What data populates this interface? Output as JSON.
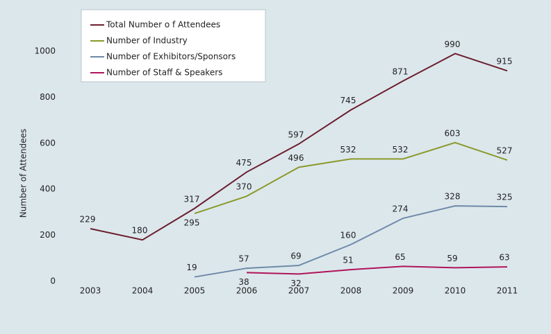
{
  "chart_data": {
    "type": "line",
    "y_label": "Number of Attendees",
    "categories": [
      "2003",
      "2004",
      "2005",
      "2006",
      "2007",
      "2008",
      "2009",
      "2010",
      "2011"
    ],
    "series": [
      {
        "name": "Total Number o f Attendees",
        "color": "#6b1e2e",
        "values": [
          229,
          180,
          317,
          475,
          597,
          745,
          871,
          990,
          915
        ]
      },
      {
        "name": "Number of Industry",
        "color": "#8a9a2a",
        "values": [
          null,
          null,
          295,
          370,
          496,
          532,
          532,
          603,
          527
        ]
      },
      {
        "name": "Number of Exhibitors/Sponsors",
        "color": "#6e8aa8",
        "values": [
          null,
          null,
          19,
          57,
          69,
          160,
          274,
          328,
          325
        ]
      },
      {
        "name": "Number of Staff & Speakers",
        "color": "#b0145a",
        "values": [
          null,
          null,
          null,
          38,
          32,
          51,
          65,
          59,
          63
        ]
      }
    ],
    "ylim": [
      0,
      1000
    ],
    "yticks": [
      0,
      200,
      400,
      600,
      800,
      1000
    ],
    "legend": "top-left"
  }
}
